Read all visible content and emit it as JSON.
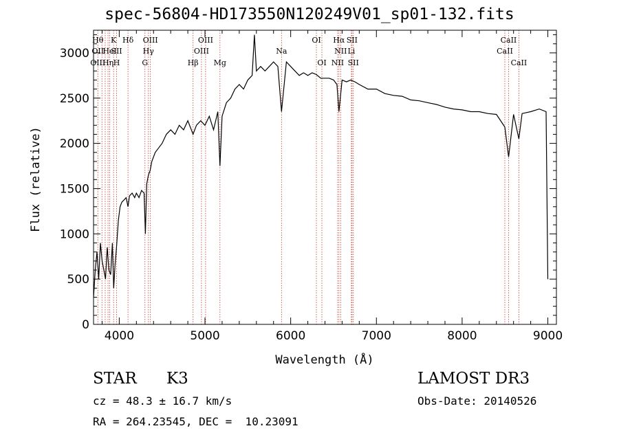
{
  "chart_data": {
    "type": "line",
    "title": "spec-56804-HD173550N120249V01_sp01-132.fits",
    "xlabel": "Wavelength (Å)",
    "ylabel": "Flux (relative)",
    "xlim": [
      3700,
      9100
    ],
    "ylim": [
      0,
      3250
    ],
    "xticks": [
      4000,
      5000,
      6000,
      7000,
      8000,
      9000
    ],
    "yticks": [
      0,
      500,
      1000,
      1500,
      2000,
      2500,
      3000
    ],
    "grid": false,
    "series": [
      {
        "x": [
          3700,
          3720,
          3740,
          3760,
          3780,
          3800,
          3820,
          3840,
          3860,
          3880,
          3900,
          3920,
          3935,
          3950,
          3968,
          3990,
          4010,
          4030,
          4060,
          4080,
          4102,
          4120,
          4150,
          4180,
          4200,
          4230,
          4260,
          4290,
          4305,
          4320,
          4340,
          4360,
          4380,
          4420,
          4460,
          4500,
          4550,
          4600,
          4650,
          4700,
          4750,
          4800,
          4861,
          4900,
          4950,
          5000,
          5050,
          5100,
          5150,
          5175,
          5200,
          5250,
          5300,
          5350,
          5400,
          5450,
          5500,
          5550,
          5577,
          5600,
          5650,
          5700,
          5750,
          5800,
          5850,
          5893,
          5950,
          6000,
          6050,
          6100,
          6150,
          6200,
          6250,
          6300,
          6350,
          6400,
          6450,
          6500,
          6540,
          6563,
          6600,
          6650,
          6700,
          6750,
          6800,
          6900,
          7000,
          7100,
          7200,
          7300,
          7400,
          7500,
          7600,
          7700,
          7800,
          7900,
          8000,
          8100,
          8200,
          8300,
          8400,
          8498,
          8542,
          8600,
          8662,
          8700,
          8800,
          8900,
          8980,
          9000
        ],
        "y": [
          300,
          600,
          800,
          500,
          900,
          700,
          600,
          500,
          850,
          600,
          550,
          900,
          400,
          650,
          850,
          1150,
          1300,
          1350,
          1380,
          1400,
          1300,
          1420,
          1450,
          1400,
          1450,
          1400,
          1480,
          1450,
          1000,
          1550,
          1650,
          1700,
          1800,
          1900,
          1950,
          2000,
          2100,
          2150,
          2100,
          2200,
          2150,
          2250,
          2100,
          2200,
          2250,
          2200,
          2300,
          2150,
          2350,
          1750,
          2300,
          2450,
          2500,
          2600,
          2650,
          2600,
          2700,
          2750,
          3200,
          2800,
          2850,
          2800,
          2850,
          2900,
          2850,
          2350,
          2900,
          2850,
          2800,
          2750,
          2780,
          2750,
          2780,
          2760,
          2720,
          2720,
          2720,
          2700,
          2650,
          2350,
          2700,
          2680,
          2700,
          2680,
          2650,
          2600,
          2600,
          2550,
          2530,
          2520,
          2480,
          2470,
          2450,
          2430,
          2400,
          2380,
          2370,
          2350,
          2350,
          2330,
          2320,
          2180,
          1850,
          2320,
          2050,
          2330,
          2350,
          2380,
          2350,
          500
        ]
      }
    ],
    "lines": [
      {
        "x": 3750,
        "labels": [
          [
            "Hθ",
            0
          ],
          [
            "OII",
            1
          ],
          [
            "OIII",
            2
          ]
        ]
      },
      {
        "x": 3798,
        "labels": []
      },
      {
        "x": 3836,
        "labels": []
      },
      {
        "x": 3869,
        "labels": [
          [
            "Hη",
            2
          ]
        ]
      },
      {
        "x": 3889,
        "labels": [
          [
            "HeI",
            1
          ]
        ]
      },
      {
        "x": 3934,
        "labels": [
          [
            "K",
            0
          ]
        ]
      },
      {
        "x": 3969,
        "labels": [
          [
            "SII",
            1
          ],
          [
            "H",
            2
          ]
        ]
      },
      {
        "x": 4102,
        "labels": [
          [
            "Hδ",
            0
          ]
        ]
      },
      {
        "x": 4300,
        "labels": [
          [
            "G",
            2
          ]
        ]
      },
      {
        "x": 4340,
        "labels": [
          [
            "Hγ",
            1
          ]
        ]
      },
      {
        "x": 4363,
        "labels": [
          [
            "OIII",
            0
          ]
        ]
      },
      {
        "x": 4861,
        "labels": [
          [
            "Hβ",
            2
          ]
        ]
      },
      {
        "x": 4959,
        "labels": [
          [
            "OIII",
            1
          ]
        ]
      },
      {
        "x": 5007,
        "labels": [
          [
            "OIII",
            0
          ]
        ]
      },
      {
        "x": 5175,
        "labels": [
          [
            "Mg",
            2
          ]
        ]
      },
      {
        "x": 5893,
        "labels": [
          [
            "Na",
            1
          ]
        ]
      },
      {
        "x": 6300,
        "labels": [
          [
            "OI",
            0
          ]
        ]
      },
      {
        "x": 6364,
        "labels": [
          [
            "OI",
            2
          ]
        ]
      },
      {
        "x": 6548,
        "labels": [
          [
            "NII",
            2
          ]
        ]
      },
      {
        "x": 6563,
        "labels": [
          [
            "Hα",
            0
          ]
        ]
      },
      {
        "x": 6583,
        "labels": [
          [
            "NII",
            1
          ]
        ]
      },
      {
        "x": 6708,
        "labels": [
          [
            "Li",
            1
          ]
        ]
      },
      {
        "x": 6716,
        "labels": [
          [
            "SII",
            0
          ]
        ]
      },
      {
        "x": 6731,
        "labels": [
          [
            "SII",
            2
          ]
        ]
      },
      {
        "x": 8498,
        "labels": [
          [
            "CaII",
            1
          ]
        ]
      },
      {
        "x": 8542,
        "labels": [
          [
            "CaII",
            0
          ]
        ]
      },
      {
        "x": 8662,
        "labels": [
          [
            "CaII",
            2
          ]
        ]
      }
    ]
  },
  "info": {
    "object_class": "STAR",
    "subclass": "K3",
    "survey": "LAMOST DR3",
    "cz": "cz = 48.3 ± 16.7 km/s",
    "obs_date": "Obs-Date: 20140526",
    "coords": "RA = 264.23545, DEC =  10.23091"
  }
}
